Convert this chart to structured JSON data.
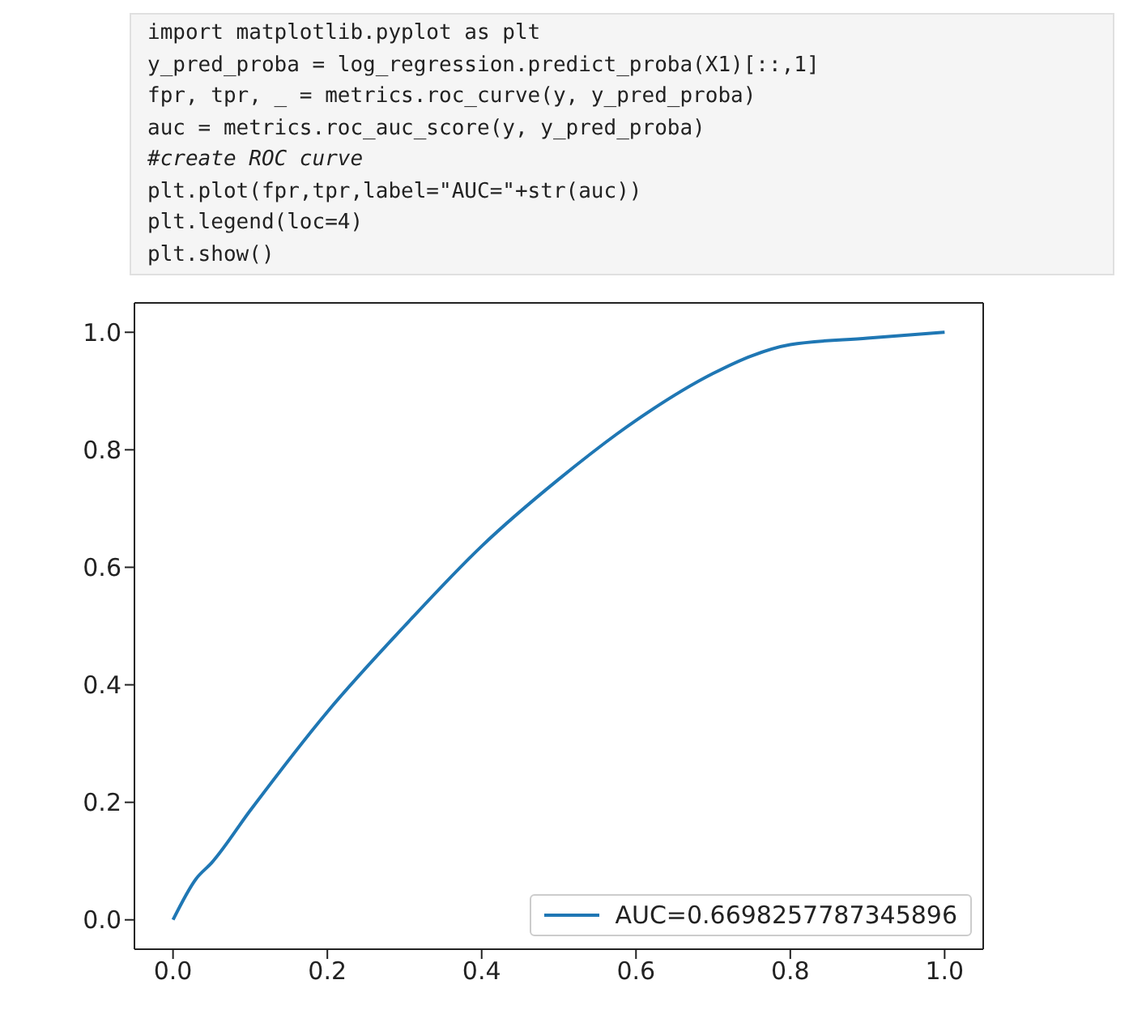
{
  "chart_data": {
    "type": "line",
    "annotations": [
      "import matplotlib.pyplot as plt",
      "y_pred_proba = log_regression.predict_proba(X1)[::,1]",
      "fpr, tpr, _ = metrics.roc_curve(y, y_pred_proba)",
      "auc = metrics.roc_auc_score(y, y_pred_proba)",
      "#create ROC curve",
      "plt.plot(fpr,tpr,label=\"AUC=\"+str(auc))",
      "plt.legend(loc=4)",
      "plt.show()"
    ],
    "x": [
      0,
      0.03,
      0.05,
      0.1,
      0.2,
      0.3,
      0.4,
      0.5,
      0.6,
      0.7,
      0.75,
      0.8,
      0.9,
      1
    ],
    "series": [
      {
        "name": "AUC=0.6698257787345896",
        "color": "#1f77b4",
        "values": [
          0,
          0.07,
          0.097,
          0.186,
          0.354,
          0.5,
          0.636,
          0.75,
          0.85,
          0.93,
          0.96,
          0.979,
          0.99,
          1
        ]
      }
    ],
    "xlim": [
      -0.05,
      1.05
    ],
    "ylim": [
      -0.05,
      1.05
    ],
    "xticks": [
      {
        "value": 0,
        "label": "0.0"
      },
      {
        "value": 0.2,
        "label": "0.2"
      },
      {
        "value": 0.4,
        "label": "0.4"
      },
      {
        "value": 0.6,
        "label": "0.6"
      },
      {
        "value": 0.8,
        "label": "0.8"
      },
      {
        "value": 1,
        "label": "1.0"
      }
    ],
    "yticks": [
      {
        "value": 0,
        "label": "0.0"
      },
      {
        "value": 0.2,
        "label": "0.2"
      },
      {
        "value": 0.4,
        "label": "0.4"
      },
      {
        "value": 0.6,
        "label": "0.6"
      },
      {
        "value": 0.8,
        "label": "0.8"
      },
      {
        "value": 1,
        "label": "1.0"
      }
    ],
    "legend": "bottom right",
    "grid": false,
    "marker": "none",
    "line_style": "solid"
  }
}
